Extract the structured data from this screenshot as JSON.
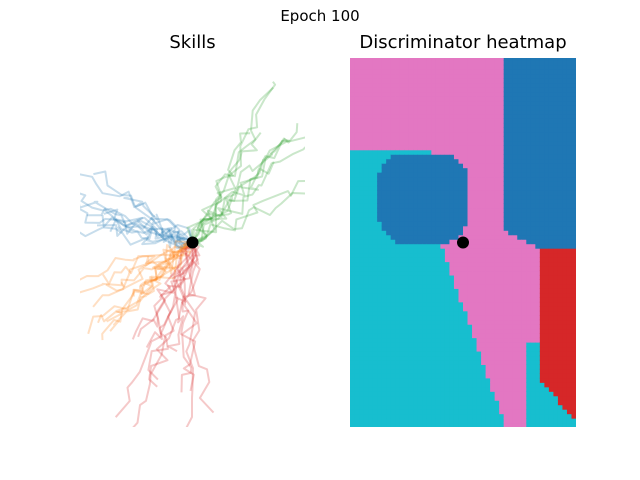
{
  "figure": {
    "suptitle": "Epoch 100"
  },
  "chart_data": [
    {
      "type": "line",
      "title": "Skills",
      "xlabel": "",
      "ylabel": "",
      "axis": "off",
      "origin": [
        0,
        0
      ],
      "xlim": [
        -1.0,
        1.0
      ],
      "ylim": [
        -1.65,
        1.65
      ],
      "series": [
        {
          "color": "#1f77b4",
          "alpha": 0.25,
          "direction_deg": 155,
          "length": 1.05,
          "count": 12
        },
        {
          "color": "#ff7f0e",
          "alpha": 0.25,
          "direction_deg": 210,
          "length": 1.05,
          "count": 12
        },
        {
          "color": "#2ca02c",
          "alpha": 0.25,
          "direction_deg": 45,
          "length": 1.4,
          "count": 12
        },
        {
          "color": "#d62728",
          "alpha": 0.25,
          "direction_deg": 255,
          "length": 1.6,
          "count": 12
        }
      ]
    },
    {
      "type": "heatmap",
      "title": "Discriminator heatmap",
      "axis": "off",
      "origin": [
        0,
        0
      ],
      "xlim": [
        -1.0,
        1.0
      ],
      "ylim": [
        -1.65,
        1.65
      ],
      "regions": [
        {
          "class": 0,
          "color": "#1f77b4"
        },
        {
          "class": 1,
          "color": "#e377c2"
        },
        {
          "class": 2,
          "color": "#17becf"
        },
        {
          "class": 3,
          "color": "#d62728"
        }
      ]
    }
  ]
}
